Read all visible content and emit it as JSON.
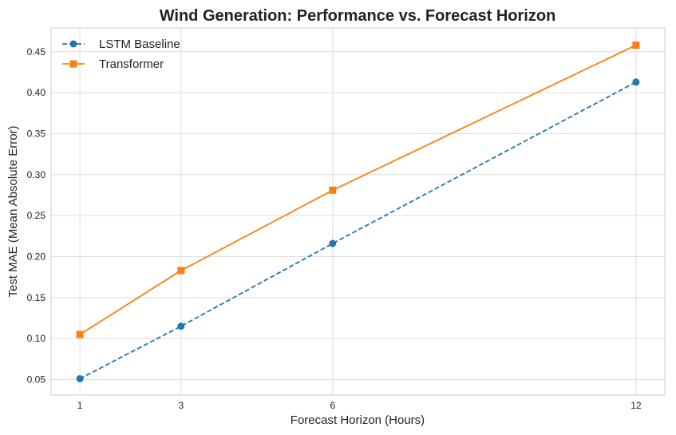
{
  "chart_data": {
    "type": "line",
    "title": "Wind Generation: Performance vs. Forecast Horizon",
    "xlabel": "Forecast Horizon (Hours)",
    "ylabel": "Test MAE (Mean Absolute Error)",
    "x": [
      1,
      3,
      6,
      12
    ],
    "x_ticks": [
      "1",
      "3",
      "6",
      "12"
    ],
    "xlim": [
      0.43,
      12.57
    ],
    "ylim": [
      0.031,
      0.479
    ],
    "y_ticks": [
      "0.05",
      "0.10",
      "0.15",
      "0.20",
      "0.25",
      "0.30",
      "0.35",
      "0.40",
      "0.45"
    ],
    "grid": true,
    "legend_position": "top-left",
    "series": [
      {
        "name": "LSTM Baseline",
        "values": [
          0.051,
          0.115,
          0.216,
          0.413
        ],
        "color": "#1f77b4",
        "marker": "circle",
        "line_style": "dashed"
      },
      {
        "name": "Transformer",
        "values": [
          0.105,
          0.183,
          0.281,
          0.458
        ],
        "color": "#ff7f0e",
        "marker": "square",
        "line_style": "solid"
      }
    ]
  }
}
